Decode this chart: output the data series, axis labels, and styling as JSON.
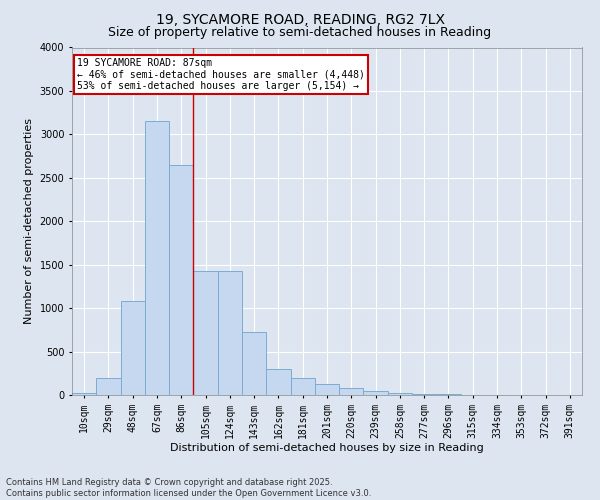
{
  "title_line1": "19, SYCAMORE ROAD, READING, RG2 7LX",
  "title_line2": "Size of property relative to semi-detached houses in Reading",
  "xlabel": "Distribution of semi-detached houses by size in Reading",
  "ylabel": "Number of semi-detached properties",
  "categories": [
    "10sqm",
    "29sqm",
    "48sqm",
    "67sqm",
    "86sqm",
    "105sqm",
    "124sqm",
    "143sqm",
    "162sqm",
    "181sqm",
    "201sqm",
    "220sqm",
    "239sqm",
    "258sqm",
    "277sqm",
    "296sqm",
    "315sqm",
    "334sqm",
    "353sqm",
    "372sqm",
    "391sqm"
  ],
  "values": [
    20,
    200,
    1080,
    3150,
    2650,
    1430,
    1430,
    720,
    300,
    200,
    125,
    75,
    45,
    25,
    15,
    10,
    5,
    3,
    2,
    1,
    1
  ],
  "bar_color": "#c5d8f0",
  "bar_edge_color": "#7aadd4",
  "vline_color": "#cc0000",
  "vline_x_index": 4,
  "annotation_text": "19 SYCAMORE ROAD: 87sqm\n← 46% of semi-detached houses are smaller (4,448)\n53% of semi-detached houses are larger (5,154) →",
  "annotation_box_facecolor": "#ffffff",
  "annotation_box_edgecolor": "#cc0000",
  "ylim": [
    0,
    4000
  ],
  "yticks": [
    0,
    500,
    1000,
    1500,
    2000,
    2500,
    3000,
    3500,
    4000
  ],
  "footer_text": "Contains HM Land Registry data © Crown copyright and database right 2025.\nContains public sector information licensed under the Open Government Licence v3.0.",
  "background_color": "#dde6f0",
  "plot_background_color": "#dde6f0",
  "grid_color": "#ffffff",
  "title_fontsize": 10,
  "subtitle_fontsize": 9,
  "tick_fontsize": 7,
  "label_fontsize": 8,
  "annotation_fontsize": 7,
  "footer_fontsize": 6
}
